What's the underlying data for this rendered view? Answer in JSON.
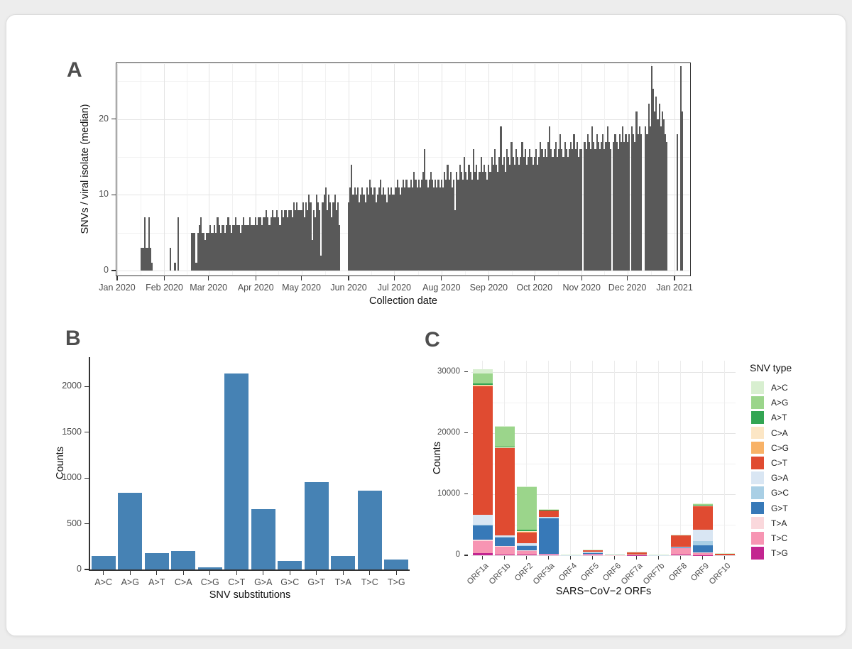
{
  "panels": {
    "a": {
      "label": "A",
      "x_axis_title": "Collection date",
      "y_axis_title": "SNVs / viral isolate (median)"
    },
    "b": {
      "label": "B",
      "x_axis_title": "SNV substitutions",
      "y_axis_title": "Counts"
    },
    "c": {
      "label": "C",
      "x_axis_title": "SARS−CoV−2 ORFs",
      "y_axis_title": "Counts",
      "legend_title": "SNV type"
    }
  },
  "colors": {
    "panel_a_bar": "#595959",
    "panel_b_bar": "#4682B4",
    "axis_text": "#4d4d4d",
    "axis_title": "#111111",
    "grid_major": "#e4e4e4",
    "grid_minor": "#f1f1f1",
    "snv_types": {
      "A>C": "#D8EFD0",
      "A>G": "#9BD58B",
      "A>T": "#33A553",
      "C>A": "#FCE6C5",
      "C>G": "#F8B267",
      "C>T": "#E04B31",
      "G>A": "#D9E6F3",
      "G>C": "#A9CFE5",
      "G>T": "#3779B8",
      "T>A": "#FAD8DC",
      "T>C": "#F795B3",
      "T>G": "#C32590"
    }
  },
  "chart_data": [
    {
      "panel": "A",
      "type": "bar",
      "title": "",
      "xlabel": "Collection date",
      "ylabel": "SNVs / viral isolate (median)",
      "x_start_date": "2020-01-01",
      "x_unit": "day",
      "x_tick_labels": [
        "Jan 2020",
        "Feb 2020",
        "Mar 2020",
        "Apr 2020",
        "May 2020",
        "Jun 2020",
        "Jul 2020",
        "Aug 2020",
        "Sep 2020",
        "Oct 2020",
        "Nov 2020",
        "Dec 2020",
        "Jan 2021"
      ],
      "month_start_day_offsets": [
        0,
        31,
        60,
        91,
        121,
        152,
        182,
        213,
        244,
        274,
        305,
        335,
        366
      ],
      "y_ticks": [
        0,
        10,
        20
      ],
      "ylim": [
        0,
        27.5
      ],
      "grid": true,
      "daily_values": [
        0,
        0,
        0,
        0,
        0,
        0,
        0,
        0,
        0,
        0,
        0,
        0,
        0,
        0,
        0,
        0,
        3,
        3,
        7,
        3,
        3,
        7,
        3,
        1,
        0,
        0,
        0,
        0,
        0,
        0,
        0,
        0,
        0,
        0,
        0,
        3,
        0,
        0,
        1,
        0,
        7,
        0,
        0,
        0,
        0,
        0,
        0,
        0,
        0,
        5,
        5,
        5,
        1,
        5,
        6,
        7,
        5,
        5,
        4,
        5,
        5,
        6,
        5,
        5,
        6,
        5,
        7,
        6,
        5,
        6,
        6,
        5,
        6,
        7,
        6,
        5,
        6,
        6,
        7,
        6,
        6,
        5,
        6,
        7,
        6,
        6,
        6,
        7,
        6,
        6,
        6,
        7,
        6,
        7,
        7,
        6,
        7,
        7,
        8,
        7,
        6,
        7,
        8,
        7,
        7,
        8,
        7,
        6,
        8,
        7,
        8,
        8,
        7,
        8,
        8,
        7,
        9,
        8,
        9,
        8,
        8,
        8,
        9,
        7,
        9,
        8,
        10,
        9,
        4,
        8,
        7,
        10,
        9,
        8,
        2,
        9,
        10,
        11,
        8,
        10,
        9,
        7,
        9,
        10,
        8,
        9,
        6,
        0,
        0,
        0,
        0,
        0,
        9,
        11,
        14,
        10,
        11,
        10,
        11,
        9,
        10,
        11,
        10,
        9,
        11,
        10,
        12,
        11,
        10,
        11,
        9,
        10,
        11,
        12,
        10,
        11,
        10,
        9,
        11,
        10,
        11,
        10,
        10,
        11,
        12,
        11,
        10,
        11,
        12,
        11,
        12,
        11,
        11,
        12,
        11,
        13,
        12,
        11,
        12,
        11,
        12,
        13,
        16,
        12,
        11,
        12,
        13,
        12,
        11,
        12,
        11,
        12,
        11,
        12,
        11,
        13,
        12,
        14,
        12,
        13,
        11,
        12,
        8,
        13,
        12,
        14,
        13,
        12,
        15,
        13,
        12,
        14,
        13,
        12,
        16,
        13,
        14,
        12,
        13,
        15,
        13,
        14,
        13,
        12,
        14,
        13,
        15,
        14,
        16,
        14,
        13,
        15,
        19,
        14,
        15,
        13,
        16,
        15,
        14,
        17,
        15,
        14,
        16,
        15,
        14,
        15,
        17,
        15,
        16,
        14,
        15,
        16,
        15,
        14,
        15,
        16,
        14,
        15,
        17,
        16,
        15,
        16,
        15,
        17,
        19,
        16,
        15,
        16,
        17,
        15,
        16,
        18,
        16,
        15,
        17,
        16,
        15,
        16,
        17,
        16,
        18,
        16,
        17,
        15,
        16,
        16,
        0,
        17,
        16,
        18,
        17,
        16,
        19,
        17,
        16,
        18,
        17,
        16,
        17,
        18,
        16,
        17,
        19,
        17,
        16,
        0,
        17,
        18,
        17,
        16,
        18,
        17,
        19,
        17,
        18,
        17,
        18,
        0,
        19,
        18,
        17,
        21,
        18,
        19,
        18,
        0,
        0,
        19,
        18,
        22,
        19,
        27,
        24,
        21,
        23,
        20,
        22,
        19,
        21,
        20,
        18,
        17,
        0,
        0,
        0,
        0,
        0,
        0,
        18,
        0,
        27,
        21
      ]
    },
    {
      "panel": "B",
      "type": "bar",
      "title": "",
      "xlabel": "SNV substitutions",
      "ylabel": "Counts",
      "categories": [
        "A>C",
        "A>G",
        "A>T",
        "C>A",
        "C>G",
        "C>T",
        "G>A",
        "G>C",
        "G>T",
        "T>A",
        "T>C",
        "T>G"
      ],
      "values": [
        150,
        835,
        180,
        200,
        25,
        2140,
        660,
        95,
        955,
        145,
        860,
        110
      ],
      "y_ticks": [
        0,
        500,
        1000,
        1500,
        2000
      ],
      "ylim": [
        0,
        2320
      ],
      "grid": false
    },
    {
      "panel": "C",
      "type": "stacked_bar",
      "title": "",
      "xlabel": "SARS−CoV−2 ORFs",
      "ylabel": "Counts",
      "legend_title": "SNV type",
      "legend_position": "right",
      "categories": [
        "ORF1a",
        "ORF1b",
        "ORF2",
        "ORF3a",
        "ORF4",
        "ORF5",
        "ORF6",
        "ORF7a",
        "ORF7b",
        "ORF8",
        "ORF9",
        "ORF10"
      ],
      "stack_order_bottom_to_top": [
        "T>G",
        "T>C",
        "T>A",
        "G>T",
        "G>C",
        "G>A",
        "C>T",
        "C>G",
        "C>A",
        "A>T",
        "A>G",
        "A>C"
      ],
      "legend_order": [
        "A>C",
        "A>G",
        "A>T",
        "C>A",
        "C>G",
        "C>T",
        "G>A",
        "G>C",
        "G>T",
        "T>A",
        "T>C",
        "T>G"
      ],
      "series": [
        {
          "name": "A>C",
          "values": [
            700,
            60,
            100,
            20,
            2,
            5,
            2,
            3,
            1,
            10,
            30,
            2
          ]
        },
        {
          "name": "A>G",
          "values": [
            1600,
            3300,
            6900,
            80,
            5,
            15,
            5,
            10,
            2,
            30,
            100,
            5
          ]
        },
        {
          "name": "A>T",
          "values": [
            250,
            120,
            300,
            40,
            3,
            10,
            3,
            5,
            1,
            20,
            150,
            3
          ]
        },
        {
          "name": "C>A",
          "values": [
            150,
            60,
            60,
            30,
            2,
            10,
            2,
            5,
            1,
            15,
            30,
            2
          ]
        },
        {
          "name": "C>G",
          "values": [
            100,
            50,
            40,
            20,
            2,
            5,
            2,
            3,
            1,
            10,
            30,
            2
          ]
        },
        {
          "name": "C>T",
          "values": [
            21000,
            14300,
            1900,
            1100,
            100,
            350,
            30,
            450,
            20,
            1850,
            3900,
            250
          ]
        },
        {
          "name": "G>A",
          "values": [
            1600,
            200,
            250,
            80,
            5,
            60,
            40,
            15,
            3,
            100,
            1900,
            5
          ]
        },
        {
          "name": "G>C",
          "values": [
            150,
            80,
            100,
            40,
            3,
            20,
            10,
            5,
            2,
            30,
            700,
            3
          ]
        },
        {
          "name": "G>T",
          "values": [
            2300,
            1500,
            800,
            5900,
            10,
            250,
            80,
            40,
            5,
            100,
            1150,
            10
          ]
        },
        {
          "name": "T>A",
          "values": [
            250,
            100,
            80,
            30,
            3,
            15,
            5,
            10,
            2,
            60,
            40,
            3
          ]
        },
        {
          "name": "T>C",
          "values": [
            2000,
            1300,
            550,
            150,
            10,
            100,
            15,
            60,
            10,
            1100,
            350,
            10
          ]
        },
        {
          "name": "T>G",
          "values": [
            330,
            80,
            150,
            60,
            15,
            80,
            10,
            30,
            25,
            60,
            50,
            8
          ]
        }
      ],
      "y_ticks": [
        0,
        10000,
        20000,
        30000
      ],
      "ylim": [
        0,
        31800
      ],
      "grid": true
    }
  ]
}
